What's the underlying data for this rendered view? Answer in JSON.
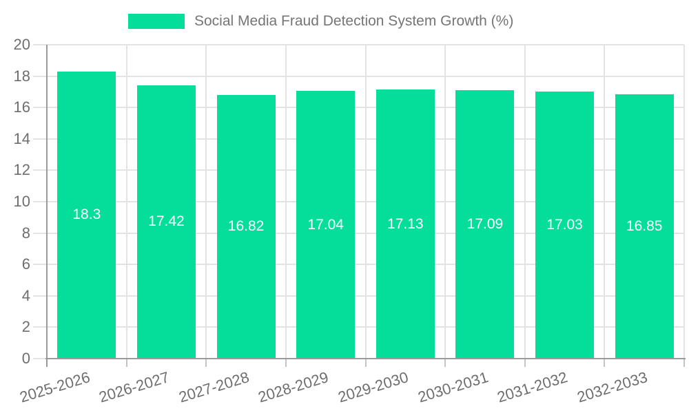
{
  "chart_data": {
    "type": "bar",
    "title": "Social Media Fraud Detection System Growth (%)",
    "categories": [
      "2025-2026",
      "2026-2027",
      "2027-2028",
      "2028-2029",
      "2029-2030",
      "2030-2031",
      "2031-2032",
      "2032-2033"
    ],
    "values": [
      18.3,
      17.42,
      16.82,
      17.04,
      17.13,
      17.09,
      17.03,
      16.85
    ],
    "value_labels": [
      "18.3",
      "17.42",
      "16.82",
      "17.04",
      "17.13",
      "17.09",
      "17.03",
      "16.85"
    ],
    "xlabel": "",
    "ylabel": "",
    "ylim": [
      0,
      20
    ],
    "yticks": [
      0,
      2,
      4,
      6,
      8,
      10,
      12,
      14,
      16,
      18,
      20
    ],
    "grid": true,
    "legend_position": "top",
    "x_tick_rotation_deg": -17,
    "colors": {
      "bar": "#05de9a",
      "value_label": "#ffffff",
      "axis": "#9a9a9a",
      "gridline": "#e3e3e3",
      "tick_label": "#6e6e6e",
      "legend_text": "#757575",
      "background": "#ffffff"
    }
  }
}
